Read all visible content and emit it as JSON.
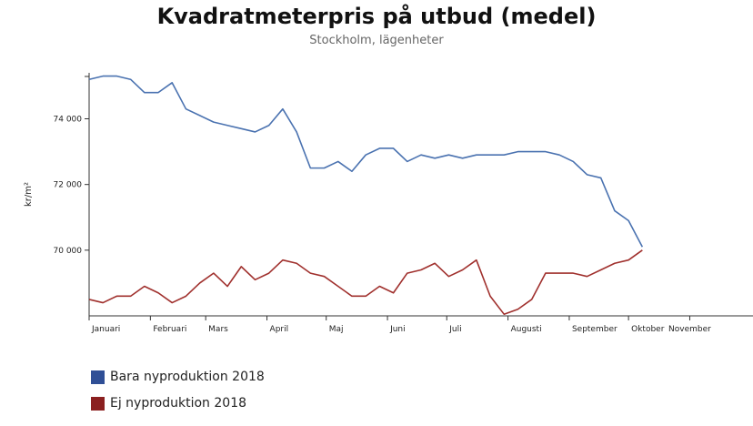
{
  "chart_data": {
    "type": "line",
    "title": "Kvadratmeterpris på utbud (medel)",
    "subtitle": "Stockholm, lägenheter",
    "ylabel": "kr/m²",
    "xlabel": "",
    "x_tick_labels": [
      "Januari",
      "Februari",
      "Mars",
      "April",
      "Maj",
      "Juni",
      "Juli",
      "Augusti",
      "September",
      "Oktober",
      "November"
    ],
    "y_ticks": [
      70000,
      72000,
      74000
    ],
    "y_tick_labels": [
      "70 000",
      "72 000",
      "74 000"
    ],
    "ylim": [
      68000,
      75400
    ],
    "x_range_weeks": [
      0,
      48
    ],
    "grid": false,
    "legend_placement": "bottom-left",
    "series": [
      {
        "name": "Bara nyproduktion 2018",
        "color": "#4a72b0",
        "values": [
          75200,
          75300,
          75300,
          75200,
          74800,
          74800,
          75100,
          74300,
          74100,
          73900,
          73800,
          73700,
          73600,
          73800,
          74300,
          73600,
          72500,
          72500,
          72700,
          72400,
          72900,
          73100,
          73100,
          72700,
          72900,
          72800,
          72900,
          72800,
          72900,
          72900,
          72900,
          73000,
          73000,
          73000,
          72900,
          72700,
          72300,
          72200,
          71200,
          70900,
          70100
        ]
      },
      {
        "name": "Ej nyproduktion 2018",
        "color": "#a0302d",
        "values": [
          68500,
          68400,
          68600,
          68600,
          68900,
          68700,
          68400,
          68600,
          69000,
          69300,
          68900,
          69500,
          69100,
          69300,
          69700,
          69600,
          69300,
          69200,
          68900,
          68600,
          68600,
          68900,
          68700,
          69300,
          69400,
          69600,
          69200,
          69400,
          69700,
          68600,
          68050,
          68200,
          68500,
          69300,
          69300,
          69300,
          69200,
          69400,
          69600,
          69700,
          70000
        ]
      }
    ]
  }
}
